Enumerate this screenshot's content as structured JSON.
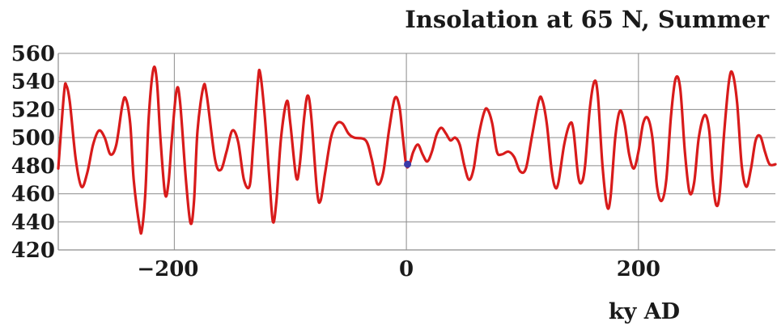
{
  "chart_data": {
    "type": "line",
    "title": "Insolation at 65 N, Summer",
    "xlabel": "ky AD",
    "ylabel": "",
    "xlim": [
      -300,
      318
    ],
    "ylim": [
      420,
      560
    ],
    "x_ticks": [
      -200,
      0,
      200
    ],
    "x_tick_labels": [
      "−200",
      "0",
      "200"
    ],
    "y_ticks": [
      420,
      440,
      460,
      480,
      500,
      520,
      540,
      560
    ],
    "y_tick_labels": [
      "420",
      "440",
      "460",
      "480",
      "500",
      "520",
      "540",
      "560"
    ],
    "grid": true,
    "colors": {
      "line": "#d81b1b",
      "grid": "#8c8c8c",
      "marker": "#3a3aa8",
      "text": "#1a1a1a"
    },
    "series": [
      {
        "points": [
          [
            -300,
            478
          ],
          [
            -295,
            532
          ],
          [
            -293,
            537
          ],
          [
            -290,
            525
          ],
          [
            -285,
            485
          ],
          [
            -280,
            465
          ],
          [
            -275,
            475
          ],
          [
            -270,
            495
          ],
          [
            -265,
            505
          ],
          [
            -260,
            500
          ],
          [
            -255,
            488
          ],
          [
            -250,
            495
          ],
          [
            -245,
            522
          ],
          [
            -242,
            528
          ],
          [
            -238,
            510
          ],
          [
            -235,
            470
          ],
          [
            -230,
            437
          ],
          [
            -228,
            434
          ],
          [
            -225,
            460
          ],
          [
            -222,
            515
          ],
          [
            -218,
            549
          ],
          [
            -215,
            540
          ],
          [
            -212,
            500
          ],
          [
            -208,
            460
          ],
          [
            -205,
            468
          ],
          [
            -202,
            500
          ],
          [
            -198,
            534
          ],
          [
            -195,
            525
          ],
          [
            -190,
            470
          ],
          [
            -186,
            439
          ],
          [
            -183,
            455
          ],
          [
            -180,
            505
          ],
          [
            -175,
            536
          ],
          [
            -172,
            530
          ],
          [
            -165,
            485
          ],
          [
            -160,
            477
          ],
          [
            -155,
            490
          ],
          [
            -150,
            505
          ],
          [
            -145,
            497
          ],
          [
            -140,
            470
          ],
          [
            -135,
            466
          ],
          [
            -132,
            495
          ],
          [
            -128,
            540
          ],
          [
            -126,
            546
          ],
          [
            -122,
            515
          ],
          [
            -118,
            470
          ],
          [
            -115,
            440
          ],
          [
            -112,
            455
          ],
          [
            -108,
            500
          ],
          [
            -103,
            526
          ],
          [
            -100,
            510
          ],
          [
            -95,
            472
          ],
          [
            -92,
            480
          ],
          [
            -88,
            515
          ],
          [
            -85,
            530
          ],
          [
            -82,
            515
          ],
          [
            -77,
            462
          ],
          [
            -74,
            455
          ],
          [
            -70,
            475
          ],
          [
            -65,
            500
          ],
          [
            -60,
            510
          ],
          [
            -55,
            510
          ],
          [
            -50,
            503
          ],
          [
            -45,
            500
          ],
          [
            -35,
            498
          ],
          [
            -30,
            485
          ],
          [
            -25,
            467
          ],
          [
            -20,
            475
          ],
          [
            -15,
            505
          ],
          [
            -10,
            528
          ],
          [
            -6,
            522
          ],
          [
            -3,
            500
          ],
          [
            0,
            480
          ],
          [
            3,
            482
          ],
          [
            6,
            490
          ],
          [
            10,
            495
          ],
          [
            14,
            488
          ],
          [
            18,
            483
          ],
          [
            22,
            490
          ],
          [
            26,
            502
          ],
          [
            30,
            507
          ],
          [
            34,
            503
          ],
          [
            38,
            498
          ],
          [
            42,
            500
          ],
          [
            46,
            495
          ],
          [
            50,
            480
          ],
          [
            54,
            470
          ],
          [
            58,
            478
          ],
          [
            62,
            500
          ],
          [
            67,
            518
          ],
          [
            70,
            520
          ],
          [
            74,
            510
          ],
          [
            78,
            490
          ],
          [
            82,
            488
          ],
          [
            88,
            490
          ],
          [
            93,
            486
          ],
          [
            98,
            476
          ],
          [
            103,
            478
          ],
          [
            108,
            500
          ],
          [
            114,
            526
          ],
          [
            117,
            527
          ],
          [
            121,
            510
          ],
          [
            125,
            478
          ],
          [
            128,
            465
          ],
          [
            131,
            468
          ],
          [
            136,
            495
          ],
          [
            141,
            510
          ],
          [
            144,
            505
          ],
          [
            148,
            473
          ],
          [
            151,
            468
          ],
          [
            154,
            480
          ],
          [
            158,
            520
          ],
          [
            162,
            540
          ],
          [
            165,
            530
          ],
          [
            169,
            480
          ],
          [
            173,
            451
          ],
          [
            176,
            458
          ],
          [
            180,
            500
          ],
          [
            184,
            519
          ],
          [
            188,
            510
          ],
          [
            192,
            488
          ],
          [
            196,
            478
          ],
          [
            200,
            490
          ],
          [
            204,
            510
          ],
          [
            208,
            514
          ],
          [
            212,
            500
          ],
          [
            216,
            465
          ],
          [
            220,
            455
          ],
          [
            224,
            470
          ],
          [
            228,
            515
          ],
          [
            232,
            542
          ],
          [
            236,
            535
          ],
          [
            240,
            490
          ],
          [
            244,
            461
          ],
          [
            248,
            468
          ],
          [
            252,
            500
          ],
          [
            257,
            516
          ],
          [
            261,
            505
          ],
          [
            264,
            470
          ],
          [
            267,
            452
          ],
          [
            270,
            460
          ],
          [
            274,
            505
          ],
          [
            278,
            540
          ],
          [
            281,
            546
          ],
          [
            285,
            525
          ],
          [
            289,
            480
          ],
          [
            293,
            465
          ],
          [
            297,
            478
          ],
          [
            301,
            498
          ],
          [
            305,
            501
          ],
          [
            309,
            490
          ],
          [
            313,
            481
          ],
          [
            318,
            481
          ]
        ]
      }
    ],
    "present_marker": {
      "x": 1,
      "y": 481
    }
  }
}
